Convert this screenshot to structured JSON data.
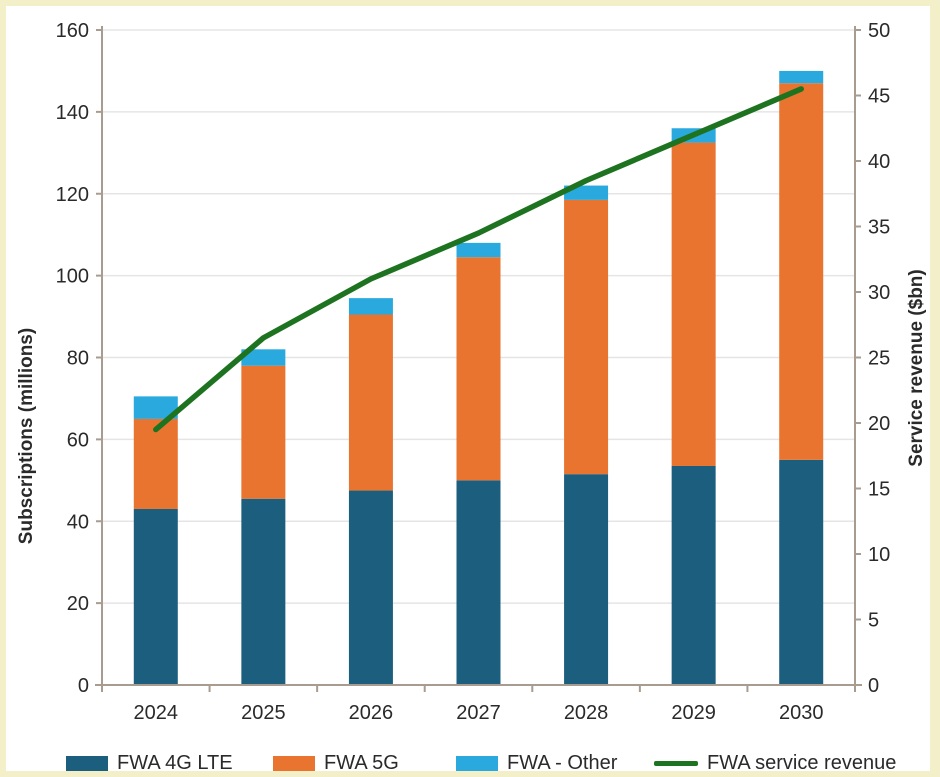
{
  "frame": {
    "background_color": "#ffffff",
    "border_color": "#f3efc9"
  },
  "chart_data": {
    "type": "combo-stacked-bar-line",
    "categories": [
      "2024",
      "2025",
      "2026",
      "2027",
      "2028",
      "2029",
      "2030"
    ],
    "bar_series": [
      {
        "name": "FWA 4G LTE",
        "color": "#1b5e7e",
        "values": [
          43,
          45.5,
          47.5,
          50,
          51.5,
          53.5,
          55
        ]
      },
      {
        "name": "FWA 5G",
        "color": "#e8742f",
        "values": [
          22,
          32.5,
          43,
          54.5,
          67,
          79,
          92
        ]
      },
      {
        "name": "FWA - Other",
        "color": "#29a9de",
        "values": [
          5.5,
          4,
          4,
          3.5,
          3.5,
          3.5,
          3
        ]
      }
    ],
    "bar_totals": [
      70.5,
      82,
      94.5,
      108,
      122,
      136,
      150
    ],
    "line_series": {
      "name": "FWA service revenue",
      "color": "#1e7320",
      "axis": "right",
      "values": [
        19.5,
        26.5,
        31,
        34.5,
        38.5,
        42,
        45.5
      ]
    },
    "left_axis": {
      "title": "Subscriptions (millions)",
      "min": 0,
      "max": 160,
      "step": 20
    },
    "right_axis": {
      "title": "Service revenue ($bn)",
      "min": 0,
      "max": 50,
      "step": 5
    },
    "grid": "horizontal",
    "legend_position": "bottom",
    "legend": [
      {
        "label": "FWA 4G LTE",
        "swatch": "rect",
        "color": "#1b5e7e"
      },
      {
        "label": "FWA 5G",
        "swatch": "rect",
        "color": "#e8742f"
      },
      {
        "label": "FWA - Other",
        "swatch": "rect",
        "color": "#29a9de"
      },
      {
        "label": "FWA service revenue",
        "swatch": "line",
        "color": "#1e7320"
      }
    ],
    "style": {
      "grid_color": "#e5e5e5",
      "axis_color": "#a89c90",
      "text_color": "#2a2a2a"
    }
  }
}
